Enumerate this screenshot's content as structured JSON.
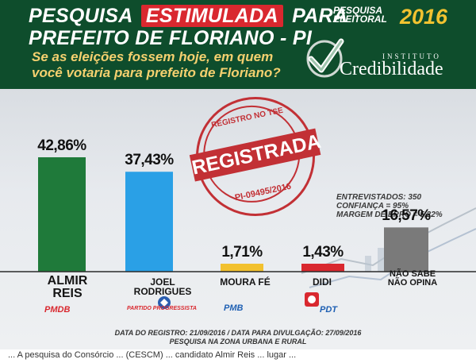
{
  "header": {
    "line1_before": "PESQUISA",
    "line1_highlight": "ESTIMULADA",
    "line1_after": "PARA",
    "line2": "PREFEITO DE FLORIANO - PI",
    "question_line1": "Se as eleições fossem hoje, em quem",
    "question_line2": "você votaria para prefeito de Floriano?"
  },
  "logo": {
    "badge_line1": "PESQUISA",
    "badge_line2": "ELEITORAL",
    "year": "2016",
    "institute": "INSTITUTO",
    "name": "Credibilidade"
  },
  "stats": {
    "line1": "ENTREVISTADOS: 350",
    "line2": "CONFIANÇA = 95%",
    "line3": "MARGEM DE ERRO = 5,22%"
  },
  "stamp": {
    "top": "REGISTRO NO TSE",
    "main": "REGISTRADA",
    "bottom": "PI-09495/2016"
  },
  "chart_data": {
    "type": "bar",
    "categories": [
      "ALMIR REIS",
      "JOEL RODRIGUES",
      "MOURA FÉ",
      "DIDI",
      "NÃO SABE NÃO OPINA"
    ],
    "values": [
      42.86,
      37.43,
      1.71,
      1.43,
      16.57
    ],
    "value_labels": [
      "42,86%",
      "37,43%",
      "1,71%",
      "1,43%",
      "16,57%"
    ],
    "colors": [
      "#1f7a3a",
      "#2aa0e6",
      "#f2c12e",
      "#d9282f",
      "#7a7a7a"
    ],
    "ylim": [
      0,
      42.86
    ]
  },
  "candidates": [
    {
      "line1": "ALMIR",
      "line2": "REIS",
      "party": "PMDB"
    },
    {
      "line1": "JOEL",
      "line2": "RODRIGUES",
      "party": "PARTIDO PROGRESSISTA"
    },
    {
      "line1": "MOURA FÉ",
      "line2": "",
      "party": "PMB"
    },
    {
      "line1": "DIDI",
      "line2": "",
      "party": "PDT"
    },
    {
      "line1": "NÃO SABE",
      "line2": "NÃO OPINA",
      "party": ""
    }
  ],
  "footer": {
    "line1": "DATA DO REGISTRO: 21/09/2016 / DATA PARA DIVULGAÇÃO: 27/09/2016",
    "line2": "PESQUISA NA ZONA URBANA E RURAL"
  },
  "caption": "... A pesquisa do Consórcio ... (CESCM) ... candidato Almir Reis ... lugar ..."
}
